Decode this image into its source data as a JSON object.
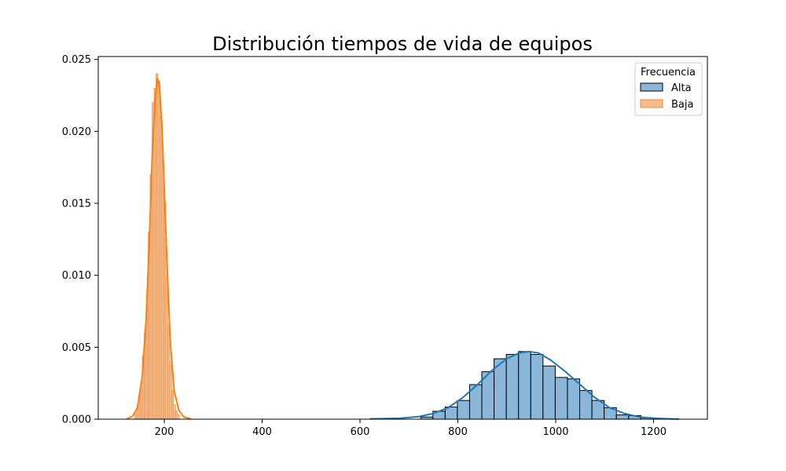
{
  "chart_data": {
    "type": "histogram",
    "title": "Distribución tiempos de vida de equipos",
    "xlabel": "",
    "ylabel": "",
    "xlim": [
      65,
      1310
    ],
    "ylim": [
      0,
      0.0252
    ],
    "x_ticks": [
      200,
      400,
      600,
      800,
      1000,
      1200
    ],
    "x_tick_labels": [
      "200",
      "400",
      "600",
      "800",
      "1000",
      "1200"
    ],
    "y_ticks": [
      0,
      0.005,
      0.01,
      0.015,
      0.02,
      0.025
    ],
    "y_tick_labels": [
      "0.000",
      "0.005",
      "0.010",
      "0.015",
      "0.020",
      "0.025"
    ],
    "grid": false,
    "legend": {
      "title": "Frecuencia",
      "placement": "top-right"
    },
    "series": [
      {
        "name": "Alta",
        "color": "#1f77b4",
        "fill": "#8ab6d9",
        "edge": "#000000",
        "bins": [
          {
            "x0": 724,
            "x1": 749,
            "y": 0.00015
          },
          {
            "x0": 749,
            "x1": 774,
            "y": 0.00055
          },
          {
            "x0": 774,
            "x1": 799,
            "y": 0.00085
          },
          {
            "x0": 799,
            "x1": 824,
            "y": 0.0013
          },
          {
            "x0": 824,
            "x1": 849,
            "y": 0.0024
          },
          {
            "x0": 849,
            "x1": 874,
            "y": 0.0033
          },
          {
            "x0": 874,
            "x1": 899,
            "y": 0.0042
          },
          {
            "x0": 899,
            "x1": 924,
            "y": 0.0045
          },
          {
            "x0": 924,
            "x1": 949,
            "y": 0.0047
          },
          {
            "x0": 949,
            "x1": 974,
            "y": 0.0045
          },
          {
            "x0": 974,
            "x1": 999,
            "y": 0.0037
          },
          {
            "x0": 999,
            "x1": 1024,
            "y": 0.0029
          },
          {
            "x0": 1024,
            "x1": 1049,
            "y": 0.0028
          },
          {
            "x0": 1049,
            "x1": 1074,
            "y": 0.002
          },
          {
            "x0": 1074,
            "x1": 1099,
            "y": 0.0013
          },
          {
            "x0": 1099,
            "x1": 1124,
            "y": 0.0008
          },
          {
            "x0": 1124,
            "x1": 1149,
            "y": 0.0003
          },
          {
            "x0": 1149,
            "x1": 1174,
            "y": 0.00025
          },
          {
            "x0": 1174,
            "x1": 1199,
            "y": 0.0001
          },
          {
            "x0": 1199,
            "x1": 1224,
            "y": 5e-05
          }
        ],
        "kde": [
          [
            620,
            2e-05
          ],
          [
            680,
            6e-05
          ],
          [
            720,
            0.00018
          ],
          [
            750,
            0.0004
          ],
          [
            780,
            0.0008
          ],
          [
            810,
            0.0015
          ],
          [
            840,
            0.0024
          ],
          [
            870,
            0.0034
          ],
          [
            900,
            0.0042
          ],
          [
            925,
            0.0046
          ],
          [
            945,
            0.0047
          ],
          [
            965,
            0.0046
          ],
          [
            990,
            0.0041
          ],
          [
            1020,
            0.0033
          ],
          [
            1050,
            0.0024
          ],
          [
            1080,
            0.0015
          ],
          [
            1110,
            0.0008
          ],
          [
            1140,
            0.0004
          ],
          [
            1170,
            0.00016
          ],
          [
            1200,
            7e-05
          ],
          [
            1230,
            3e-05
          ],
          [
            1252,
            1e-05
          ]
        ]
      },
      {
        "name": "Baja",
        "color": "#ff7f0e",
        "fill": "#f9bd8c",
        "edge": "#e08a4a",
        "bins": [
          {
            "x0": 139,
            "x1": 143,
            "y": 0.0004
          },
          {
            "x0": 143,
            "x1": 147,
            "y": 0.0007
          },
          {
            "x0": 147,
            "x1": 151,
            "y": 0.0016
          },
          {
            "x0": 151,
            "x1": 155,
            "y": 0.0022
          },
          {
            "x0": 155,
            "x1": 159,
            "y": 0.0044
          },
          {
            "x0": 159,
            "x1": 163,
            "y": 0.006
          },
          {
            "x0": 163,
            "x1": 167,
            "y": 0.008
          },
          {
            "x0": 167,
            "x1": 171,
            "y": 0.013
          },
          {
            "x0": 171,
            "x1": 175,
            "y": 0.017
          },
          {
            "x0": 175,
            "x1": 179,
            "y": 0.022
          },
          {
            "x0": 179,
            "x1": 183,
            "y": 0.023
          },
          {
            "x0": 183,
            "x1": 187,
            "y": 0.024
          },
          {
            "x0": 187,
            "x1": 191,
            "y": 0.0235
          },
          {
            "x0": 191,
            "x1": 195,
            "y": 0.021
          },
          {
            "x0": 195,
            "x1": 199,
            "y": 0.018
          },
          {
            "x0": 199,
            "x1": 203,
            "y": 0.015
          },
          {
            "x0": 203,
            "x1": 207,
            "y": 0.01
          },
          {
            "x0": 207,
            "x1": 211,
            "y": 0.0065
          },
          {
            "x0": 211,
            "x1": 215,
            "y": 0.004
          },
          {
            "x0": 215,
            "x1": 219,
            "y": 0.002
          },
          {
            "x0": 219,
            "x1": 223,
            "y": 0.001
          },
          {
            "x0": 223,
            "x1": 227,
            "y": 0.0006
          },
          {
            "x0": 227,
            "x1": 231,
            "y": 0.0003
          }
        ],
        "kde": [
          [
            123,
            2e-05
          ],
          [
            135,
            0.0002
          ],
          [
            145,
            0.0008
          ],
          [
            155,
            0.003
          ],
          [
            163,
            0.007
          ],
          [
            170,
            0.013
          ],
          [
            176,
            0.019
          ],
          [
            182,
            0.0225
          ],
          [
            186,
            0.0237
          ],
          [
            190,
            0.0232
          ],
          [
            195,
            0.0205
          ],
          [
            200,
            0.016
          ],
          [
            206,
            0.0105
          ],
          [
            212,
            0.0055
          ],
          [
            220,
            0.002
          ],
          [
            230,
            0.0006
          ],
          [
            240,
            0.00015
          ],
          [
            255,
            2e-05
          ]
        ]
      }
    ]
  }
}
